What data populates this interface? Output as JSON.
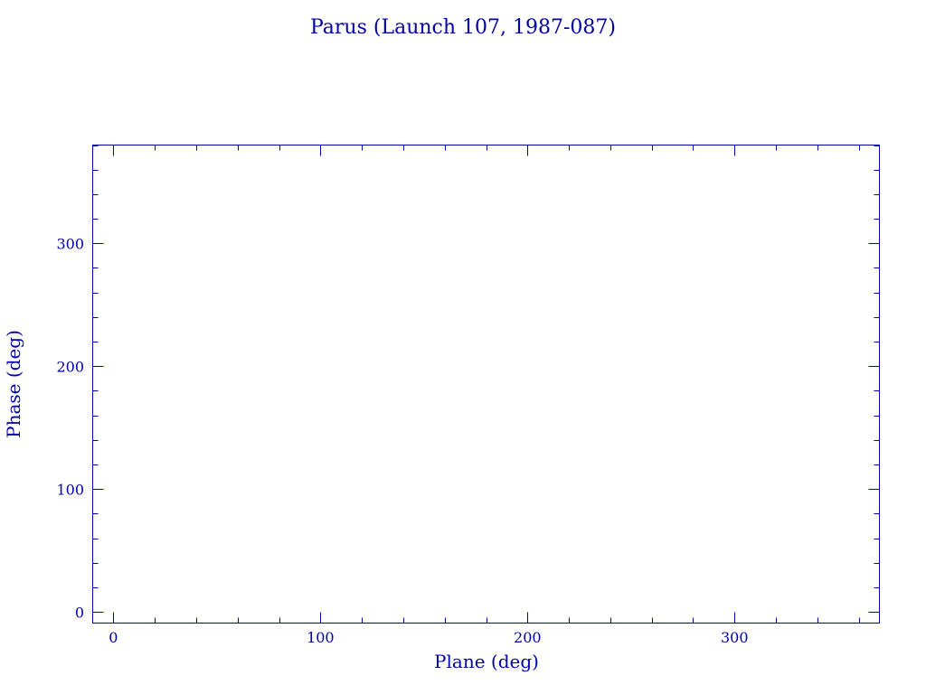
{
  "chart_data": {
    "type": "scatter",
    "title": "Parus (Launch 107, 1987-087)",
    "xlabel": "Plane (deg)",
    "ylabel": "Phase (deg)",
    "xlim": [
      -10,
      370
    ],
    "ylim": [
      -9,
      380
    ],
    "x_major_ticks": [
      0,
      100,
      200,
      300
    ],
    "x_tick_labels": [
      "0",
      "100",
      "200",
      "300"
    ],
    "y_major_ticks": [
      0,
      100,
      200,
      300
    ],
    "y_tick_labels": [
      "0",
      "100",
      "200",
      "300"
    ],
    "minor_tick_step": 20,
    "grid": false,
    "series": [
      {
        "x": [],
        "y": []
      }
    ],
    "color": "#0000a8"
  }
}
